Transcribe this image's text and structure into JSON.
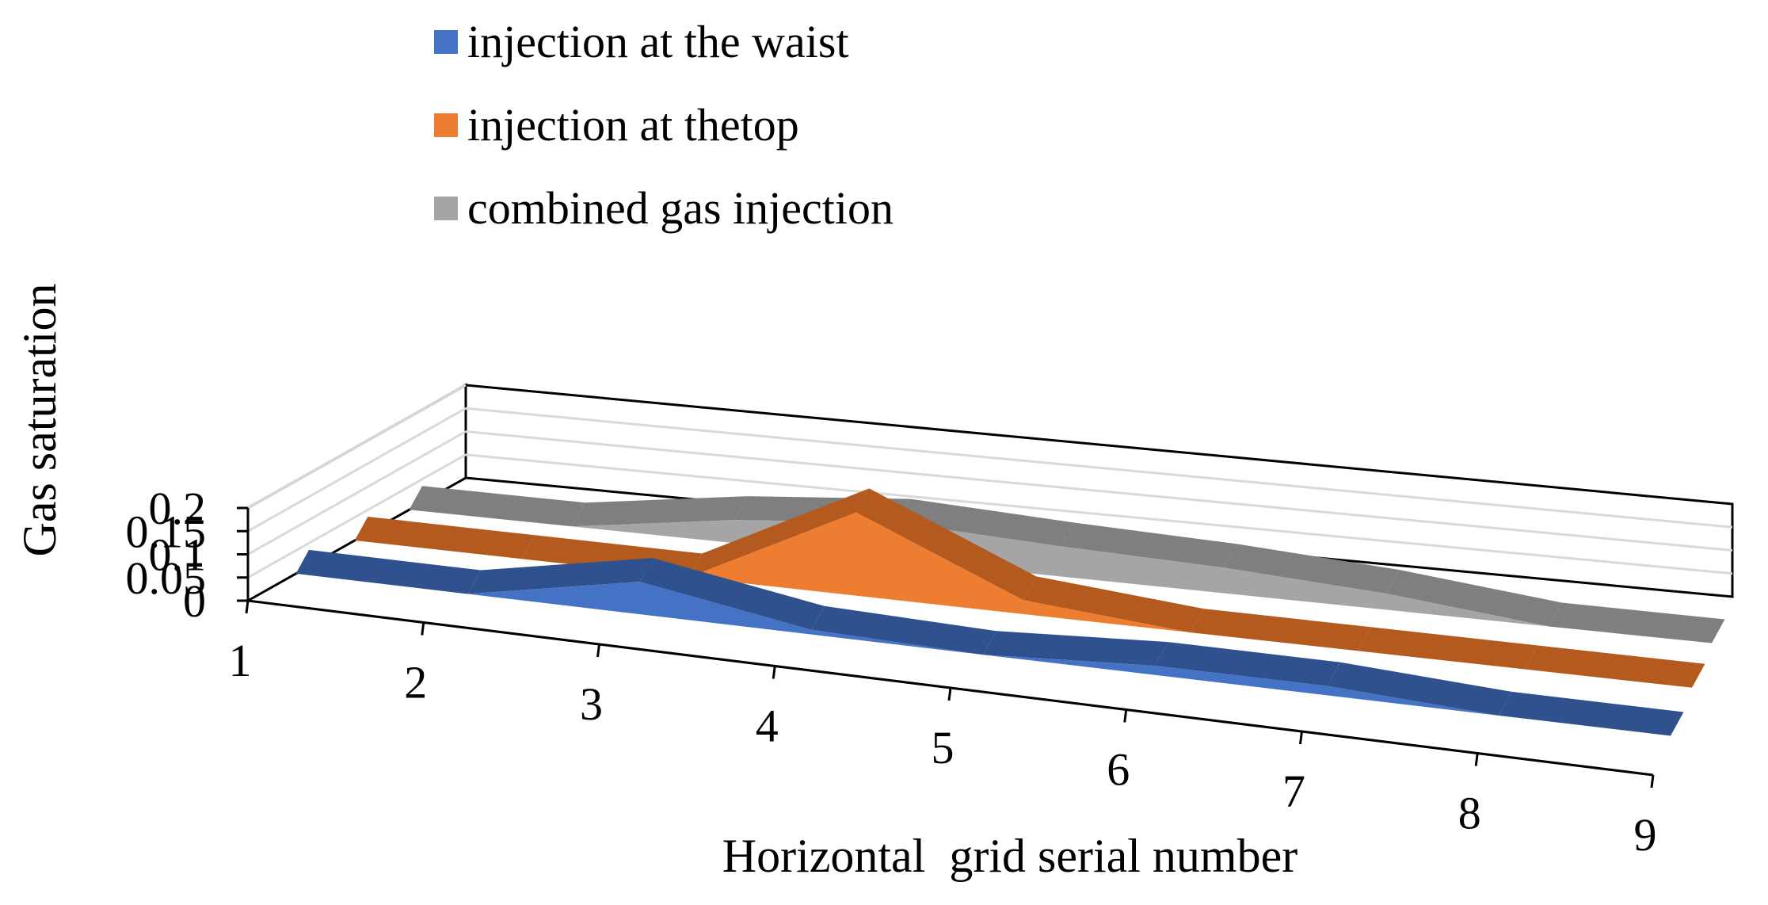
{
  "chart_data": {
    "type": "area",
    "categories": [
      "1",
      "2",
      "3",
      "4",
      "5",
      "6",
      "7",
      "8",
      "9"
    ],
    "xlabel": "Horizontal  grid serial number",
    "ylabel": "Gas saturation",
    "ylim": [
      0,
      0.2
    ],
    "yticks": [
      "0",
      "0.05",
      "0.1",
      "0.15",
      "0.2"
    ],
    "grid": true,
    "legend_position": "top-left",
    "series": [
      {
        "name": "injection at the waist",
        "color": "#4472C4",
        "side_color": "#2F528F",
        "values": [
          0,
          0,
          0.07,
          0.01,
          0,
          0.02,
          0.02,
          0,
          0
        ]
      },
      {
        "name": "injection at thetop",
        "color": "#ED7D31",
        "side_color": "#B45A1E",
        "values": [
          0,
          0,
          0,
          0.18,
          0.03,
          0,
          0,
          0,
          0
        ]
      },
      {
        "name": "combined gas injection",
        "color": "#A5A5A5",
        "side_color": "#7F7F7F",
        "values": [
          0,
          0,
          0.05,
          0.08,
          0.065,
          0.055,
          0.035,
          0,
          0
        ]
      }
    ]
  }
}
